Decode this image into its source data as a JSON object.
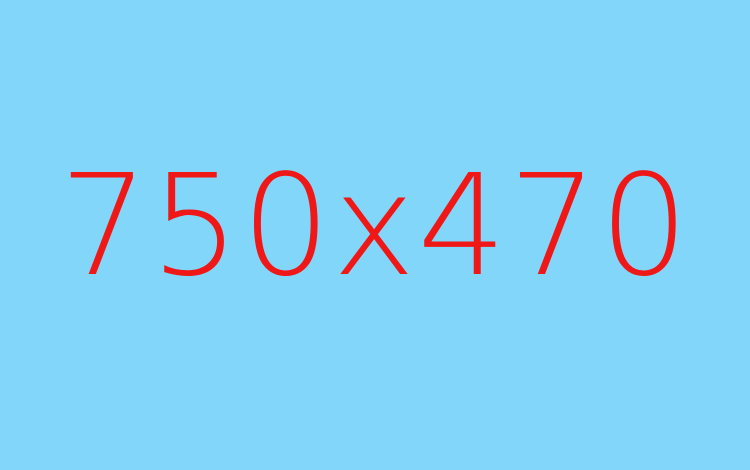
{
  "placeholder": {
    "text": "750x470",
    "background_color": "#82D6FA",
    "text_color": "#F01717"
  }
}
